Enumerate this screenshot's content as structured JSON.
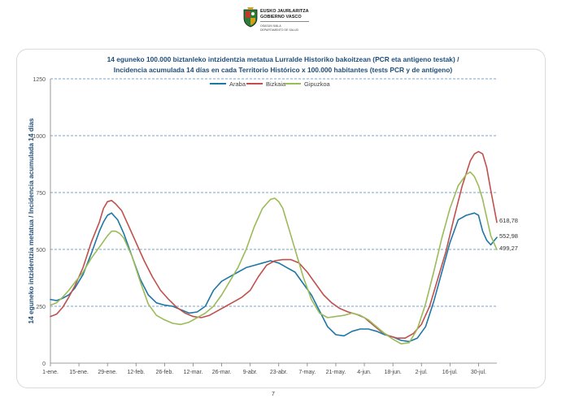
{
  "header": {
    "org_line1": "EUSKO JAURLARITZA",
    "org_line2": "GOBIERNO VASCO",
    "dept_line1": "OSASUN SAILA",
    "dept_line2": "DEPARTAMENTO DE SALUD"
  },
  "page_number": "7",
  "colors": {
    "Araba": "#1f77a6",
    "Bizkaia": "#c0504d",
    "Gipuzkoa": "#9bbb59",
    "title": "#1f4e79"
  },
  "chart_data": {
    "type": "line",
    "title": "14 eguneko 100.000 biztanleko intzidentzia metatua Lurralde Historiko bakoitzean (PCR eta antigeno  testak) /",
    "subtitle": "Incidencia acumulada  14 días en cada Territorio Histórico x 100.000 habitantes (tests PCR y de antígeno)",
    "xlabel": "",
    "ylabel": "14 eguneko intzidentzia metatua / Incidencia acumulada 14 días",
    "ylim": [
      0,
      1250
    ],
    "yticks": [
      "0",
      "250",
      "500",
      "750",
      "1000",
      "1250"
    ],
    "x_tick_labels": [
      "1-ene.",
      "15-ene.",
      "29-ene.",
      "12-feb.",
      "26-feb.",
      "12-mar.",
      "26-mar.",
      "9-abr.",
      "23-abr.",
      "7-may.",
      "21-may.",
      "4-jun.",
      "18-jun.",
      "2-jul.",
      "16-jul.",
      "30-jul."
    ],
    "x_tick_days": [
      0,
      14,
      28,
      42,
      56,
      70,
      84,
      98,
      112,
      126,
      140,
      154,
      168,
      182,
      196,
      210
    ],
    "x_unit": "days since 1-ene.",
    "x_max": 219,
    "grid": "horizontal dashed",
    "legend_position": "top-center",
    "series": [
      {
        "name": "Araba",
        "color": "#1f77a6",
        "x": [
          0,
          3,
          6,
          9,
          12,
          16,
          20,
          24,
          26,
          28,
          30,
          33,
          36,
          40,
          44,
          48,
          52,
          56,
          60,
          64,
          68,
          72,
          76,
          80,
          84,
          88,
          92,
          96,
          100,
          104,
          108,
          110,
          112,
          114,
          116,
          120,
          124,
          128,
          132,
          136,
          140,
          144,
          148,
          152,
          156,
          160,
          164,
          168,
          172,
          176,
          180,
          184,
          188,
          192,
          196,
          200,
          204,
          206,
          208,
          210,
          212,
          214,
          216,
          219
        ],
        "y": [
          280,
          275,
          285,
          300,
          330,
          390,
          480,
          580,
          620,
          650,
          660,
          630,
          570,
          470,
          370,
          300,
          265,
          255,
          250,
          235,
          220,
          225,
          250,
          320,
          360,
          380,
          400,
          420,
          430,
          440,
          450,
          445,
          440,
          430,
          420,
          400,
          350,
          300,
          230,
          160,
          125,
          120,
          140,
          150,
          150,
          140,
          125,
          115,
          100,
          95,
          110,
          160,
          270,
          400,
          530,
          630,
          650,
          655,
          660,
          650,
          580,
          540,
          520,
          553
        ]
      },
      {
        "name": "Bizkaia",
        "color": "#c0504d",
        "x": [
          0,
          3,
          6,
          9,
          12,
          16,
          20,
          24,
          26,
          28,
          30,
          32,
          35,
          38,
          42,
          46,
          50,
          54,
          58,
          62,
          66,
          70,
          74,
          78,
          82,
          86,
          90,
          94,
          98,
          102,
          106,
          110,
          114,
          118,
          122,
          126,
          130,
          134,
          138,
          142,
          146,
          150,
          154,
          158,
          162,
          166,
          170,
          174,
          178,
          182,
          186,
          190,
          194,
          198,
          202,
          206,
          208,
          210,
          212,
          214,
          216,
          219
        ],
        "y": [
          205,
          215,
          245,
          290,
          340,
          420,
          530,
          620,
          680,
          710,
          715,
          700,
          670,
          610,
          530,
          450,
          380,
          320,
          280,
          245,
          220,
          205,
          200,
          210,
          230,
          250,
          270,
          290,
          320,
          380,
          430,
          450,
          455,
          455,
          440,
          400,
          350,
          300,
          265,
          240,
          225,
          215,
          200,
          170,
          140,
          120,
          110,
          110,
          130,
          170,
          250,
          370,
          490,
          640,
          780,
          890,
          920,
          930,
          920,
          860,
          760,
          619
        ]
      },
      {
        "name": "Gipuzkoa",
        "color": "#9bbb59",
        "x": [
          0,
          3,
          6,
          9,
          12,
          16,
          20,
          24,
          28,
          30,
          32,
          34,
          36,
          40,
          44,
          48,
          52,
          56,
          60,
          64,
          68,
          72,
          76,
          80,
          84,
          88,
          92,
          96,
          100,
          104,
          108,
          110,
          112,
          114,
          116,
          118,
          120,
          124,
          128,
          132,
          136,
          140,
          144,
          148,
          152,
          156,
          160,
          164,
          168,
          172,
          176,
          180,
          184,
          188,
          192,
          196,
          200,
          204,
          206,
          208,
          210,
          212,
          214,
          216,
          219
        ],
        "y": [
          255,
          265,
          290,
          320,
          355,
          400,
          460,
          510,
          560,
          580,
          580,
          570,
          550,
          470,
          360,
          260,
          210,
          190,
          175,
          170,
          180,
          200,
          220,
          250,
          300,
          360,
          420,
          500,
          600,
          680,
          720,
          725,
          710,
          680,
          620,
          560,
          500,
          380,
          280,
          220,
          200,
          205,
          210,
          220,
          210,
          190,
          160,
          130,
          105,
          85,
          90,
          150,
          260,
          400,
          550,
          680,
          780,
          830,
          840,
          820,
          780,
          720,
          640,
          560,
          499
        ]
      }
    ],
    "end_labels": [
      {
        "series": "Bizkaia",
        "text": "618,78"
      },
      {
        "series": "Araba",
        "text": "552,98"
      },
      {
        "series": "Gipuzkoa",
        "text": "499,27"
      }
    ]
  }
}
